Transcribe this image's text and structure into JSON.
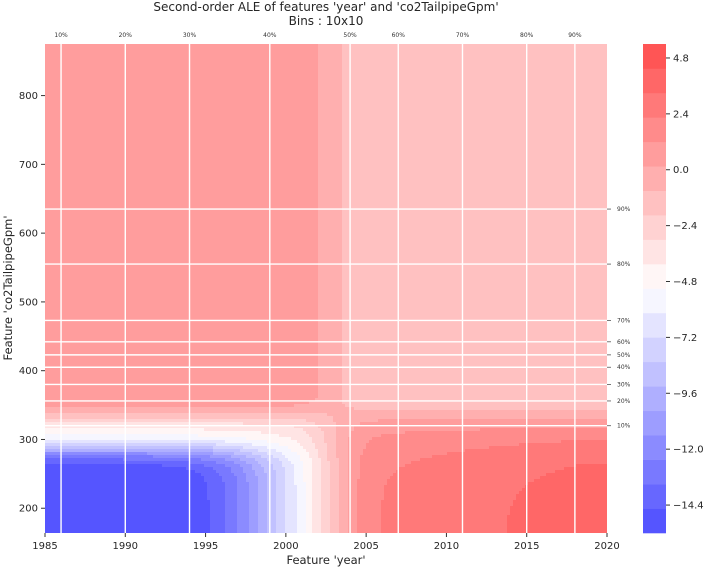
{
  "chart_data": {
    "type": "heatmap",
    "title": "Second-order ALE of features 'year' and 'co2TailpipeGpm'",
    "subtitle": "Bins : 10x10",
    "xlabel": "Feature 'year'",
    "ylabel": "Feature 'co2TailpipeGpm'",
    "xlim": [
      1985,
      2020
    ],
    "ylim": [
      164,
      875
    ],
    "x_ticks": [
      1985,
      1990,
      1995,
      2000,
      2005,
      2010,
      2015,
      2020
    ],
    "y_ticks": [
      200,
      300,
      400,
      500,
      600,
      700,
      800
    ],
    "x_deciles": [
      {
        "label": "10%",
        "value": 1986
      },
      {
        "label": "20%",
        "value": 1990
      },
      {
        "label": "30%",
        "value": 1994
      },
      {
        "label": "40%",
        "value": 1999
      },
      {
        "label": "50%",
        "value": 2004
      },
      {
        "label": "60%",
        "value": 2007
      },
      {
        "label": "70%",
        "value": 2011
      },
      {
        "label": "80%",
        "value": 2015
      },
      {
        "label": "90%",
        "value": 2018
      }
    ],
    "y_deciles": [
      {
        "label": "10%",
        "value": 320
      },
      {
        "label": "20%",
        "value": 356
      },
      {
        "label": "30%",
        "value": 380
      },
      {
        "label": "40%",
        "value": 405
      },
      {
        "label": "50%",
        "value": 423
      },
      {
        "label": "60%",
        "value": 442
      },
      {
        "label": "70%",
        "value": 473
      },
      {
        "label": "80%",
        "value": 555
      },
      {
        "label": "90%",
        "value": 635
      }
    ],
    "colorbar": {
      "colormap": "bwr",
      "vmin": -15.6,
      "vmax": 5.4,
      "ticks": [
        4.8,
        2.4,
        0.0,
        -2.4,
        -4.8,
        -7.2,
        -9.6,
        -12.0,
        -14.4
      ],
      "tick_labels": [
        "4.8",
        "2.4",
        "0.0",
        "−2.4",
        "−4.8",
        "−7.2",
        "−9.6",
        "−12.0",
        "−14.4"
      ]
    },
    "grid": true
  }
}
